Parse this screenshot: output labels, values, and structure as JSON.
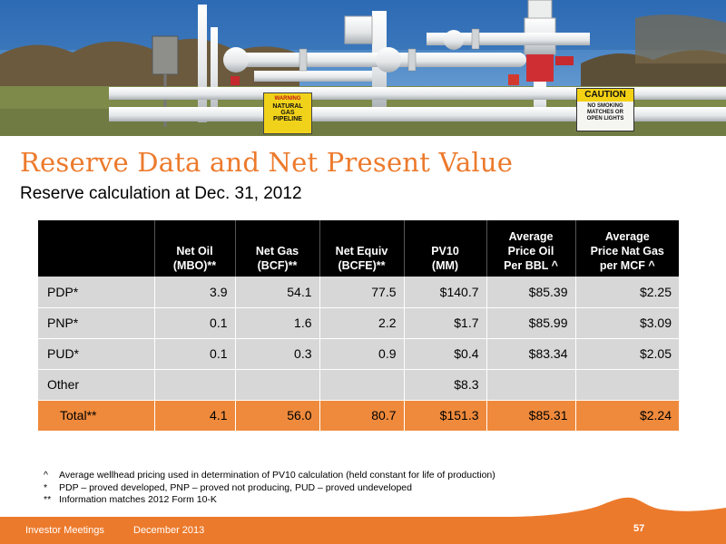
{
  "header_image": {
    "sign_pipeline": [
      "WARNING",
      "NATURAL",
      "GAS",
      "PIPELINE"
    ],
    "sign_caution": [
      "CAUTION",
      "NO SMOKING",
      "MATCHES OR",
      "OPEN LIGHTS"
    ]
  },
  "title": "Reserve Data and Net Present Value",
  "subtitle": "Reserve calculation at Dec. 31, 2012",
  "table": {
    "headers": [
      [
        "",
        ""
      ],
      [
        "Net Oil",
        "(MBO)**"
      ],
      [
        "Net Gas",
        "(BCF)**"
      ],
      [
        "Net Equiv",
        "(BCFE)**"
      ],
      [
        "PV10",
        "(MM)"
      ],
      [
        "Average",
        "Price Oil",
        "Per BBL ^"
      ],
      [
        "Average",
        "Price Nat Gas",
        "per MCF ^"
      ]
    ],
    "rows": [
      {
        "label": "PDP*",
        "values": [
          "3.9",
          "54.1",
          "77.5",
          "$140.7",
          "$85.39",
          "$2.25"
        ]
      },
      {
        "label": "PNP*",
        "values": [
          "0.1",
          "1.6",
          "2.2",
          "$1.7",
          "$85.99",
          "$3.09"
        ]
      },
      {
        "label": "PUD*",
        "values": [
          "0.1",
          "0.3",
          "0.9",
          "$0.4",
          "$83.34",
          "$2.05"
        ]
      },
      {
        "label": "Other",
        "values": [
          "",
          "",
          "",
          "$8.3",
          "",
          ""
        ]
      }
    ],
    "total": {
      "label": "Total**",
      "values": [
        "4.1",
        "56.0",
        "80.7",
        "$151.3",
        "$85.31",
        "$2.24"
      ]
    }
  },
  "notes": [
    {
      "mark": "^",
      "text": "Average wellhead pricing used in determination of PV10 calculation (held constant for life of production)"
    },
    {
      "mark": "*",
      "text": "PDP – proved developed,   PNP – proved not producing,  PUD – proved undeveloped"
    },
    {
      "mark": "**",
      "text": "Information matches 2012 Form 10-K"
    }
  ],
  "footer": {
    "left": "Investor Meetings",
    "date": "December 2013",
    "page": "57"
  },
  "colors": {
    "accent": "#ec7a2c",
    "header_bg": "#000000",
    "row_bg": "#d7d7d7",
    "total_bg": "#ef8a3c"
  }
}
